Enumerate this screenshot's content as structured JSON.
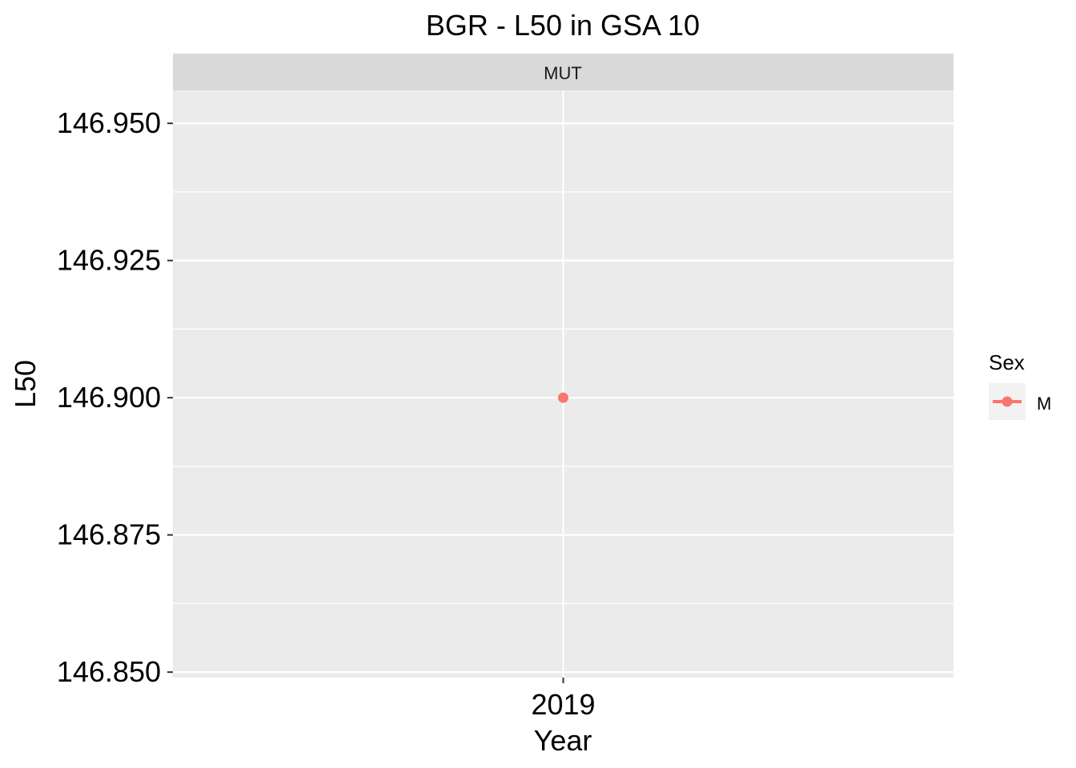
{
  "chart_data": {
    "type": "scatter",
    "title": "BGR  - L50 in GSA 10",
    "facet_label": "MUT",
    "xlabel": "Year",
    "ylabel": "L50",
    "x_categories": [
      "2019"
    ],
    "ylim": [
      146.85,
      146.95
    ],
    "y_ticks": [
      "146.850",
      "146.875",
      "146.900",
      "146.925",
      "146.950"
    ],
    "y_tick_values": [
      146.85,
      146.875,
      146.9,
      146.925,
      146.95
    ],
    "series": [
      {
        "name": "M",
        "color": "#F8766D",
        "points": [
          {
            "x": "2019",
            "y": 146.9
          }
        ]
      }
    ],
    "legend": {
      "title": "Sex",
      "placement": "right"
    },
    "grid": true,
    "panel_background": "#EBEBEB",
    "strip_background": "#D9D9D9"
  }
}
